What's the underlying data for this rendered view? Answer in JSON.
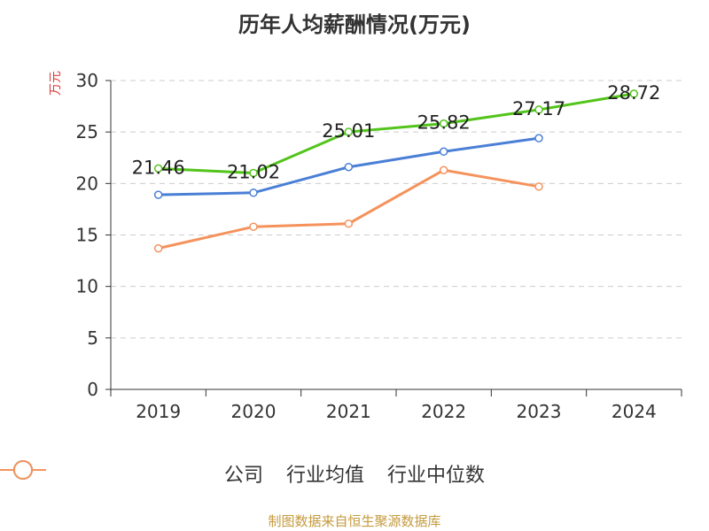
{
  "chart_data": {
    "type": "line",
    "title": "历年人均薪酬情况(万元)",
    "ylabel": "万元",
    "xlabel": "",
    "categories": [
      "2019",
      "2020",
      "2021",
      "2022",
      "2023",
      "2024"
    ],
    "ylim": [
      0,
      30
    ],
    "yticks": [
      0,
      5,
      10,
      15,
      20,
      25,
      30
    ],
    "grid": true,
    "legend_position": "bottom",
    "series": [
      {
        "name": "公司",
        "color": "#52c41a",
        "values": [
          21.46,
          21.02,
          25.01,
          25.82,
          27.17,
          28.72
        ],
        "labels": [
          "21.46",
          "21.02",
          "25.01",
          "25.82",
          "27.17",
          "28.72"
        ]
      },
      {
        "name": "行业均值",
        "color": "#4a7fd6",
        "values": [
          18.9,
          19.1,
          21.6,
          23.1,
          24.4,
          null
        ]
      },
      {
        "name": "行业中位数",
        "color": "#f5925c",
        "values": [
          13.7,
          15.8,
          16.1,
          21.3,
          19.7,
          null
        ]
      }
    ]
  },
  "source": "制图数据来自恒生聚源数据库"
}
